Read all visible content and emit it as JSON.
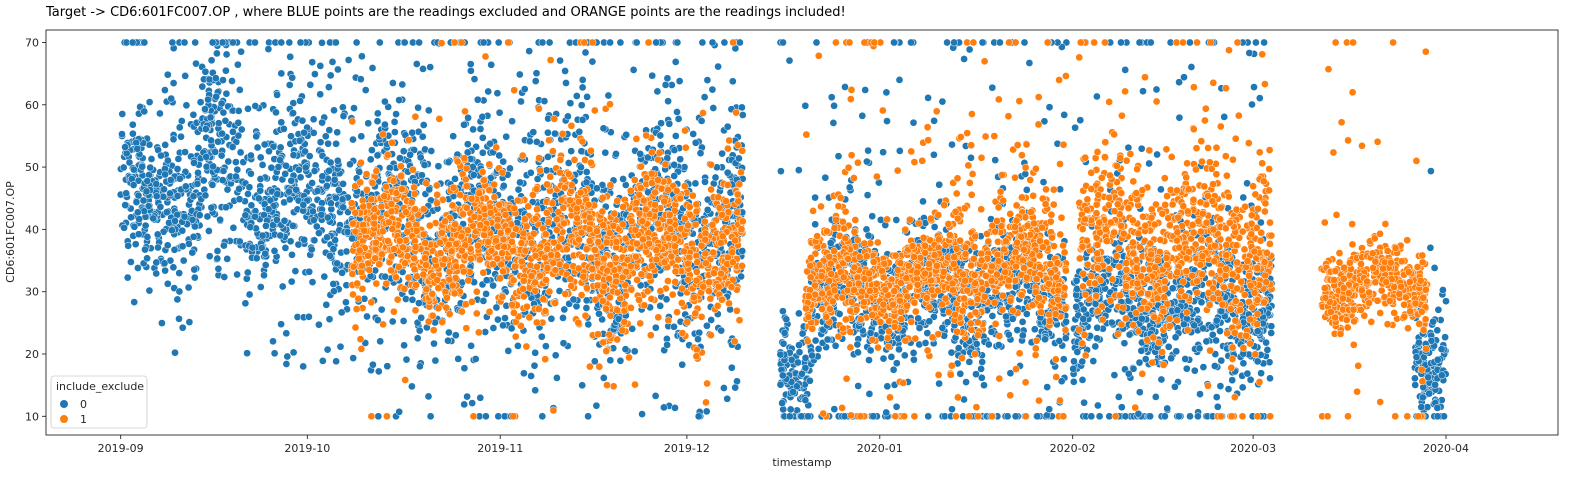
{
  "chart_data": {
    "type": "scatter",
    "title": "Target -> CD6:601FC007.OP , where BLUE points are the readings excluded and ORANGE points are the readings included!",
    "xlabel": "timestamp",
    "ylabel": "CD6:601FC007.OP",
    "xlim": [
      "2019-08-20",
      "2020-04-19"
    ],
    "ylim": [
      7,
      72
    ],
    "x_ticks": [
      "2019-09",
      "2019-10",
      "2019-11",
      "2019-12",
      "2020-01",
      "2020-02",
      "2020-03",
      "2020-04"
    ],
    "y_ticks": [
      10,
      20,
      30,
      40,
      50,
      60,
      70
    ],
    "grid": false,
    "legend": {
      "title": "include_exclude",
      "position": "bottom-left"
    },
    "series": [
      {
        "name": "0",
        "color": "#1f77b4",
        "segments": [
          {
            "start": "2019-09-01",
            "end": "2019-09-14",
            "center": 46,
            "spread": 6,
            "outlier_rate": 0.25
          },
          {
            "start": "2019-09-14",
            "end": "2019-09-21",
            "center": 52,
            "spread": 8,
            "outlier_rate": 0.25
          },
          {
            "start": "2019-09-21",
            "end": "2019-10-10",
            "center": 45,
            "spread": 6,
            "outlier_rate": 0.3
          },
          {
            "start": "2019-10-10",
            "end": "2019-12-10",
            "center": 40,
            "spread": 8,
            "outlier_rate": 0.3
          },
          {
            "start": "2019-12-16",
            "end": "2019-12-21",
            "center": 20,
            "spread": 4,
            "outlier_rate": 0.15
          },
          {
            "start": "2019-12-21",
            "end": "2020-01-31",
            "center": 30,
            "spread": 5,
            "outlier_rate": 0.2
          },
          {
            "start": "2020-02-01",
            "end": "2020-03-04",
            "center": 28,
            "spread": 5,
            "outlier_rate": 0.2
          },
          {
            "start": "2020-03-27",
            "end": "2020-04-01",
            "center": 20,
            "spread": 5,
            "outlier_rate": 0.1
          }
        ]
      },
      {
        "name": "1",
        "color": "#ff7f0e",
        "segments": [
          {
            "start": "2019-10-08",
            "end": "2019-11-06",
            "center": 38,
            "spread": 5,
            "outlier_rate": 0.06
          },
          {
            "start": "2019-11-06",
            "end": "2019-12-10",
            "center": 37,
            "spread": 6,
            "outlier_rate": 0.06
          },
          {
            "start": "2019-12-20",
            "end": "2020-01-12",
            "center": 32,
            "spread": 4,
            "outlier_rate": 0.12
          },
          {
            "start": "2020-01-12",
            "end": "2020-01-31",
            "center": 35,
            "spread": 5,
            "outlier_rate": 0.15
          },
          {
            "start": "2020-02-02",
            "end": "2020-03-04",
            "center": 38,
            "spread": 6,
            "outlier_rate": 0.15
          },
          {
            "start": "2020-03-12",
            "end": "2020-03-29",
            "center": 31,
            "spread": 3,
            "outlier_rate": 0.1
          }
        ]
      }
    ]
  }
}
